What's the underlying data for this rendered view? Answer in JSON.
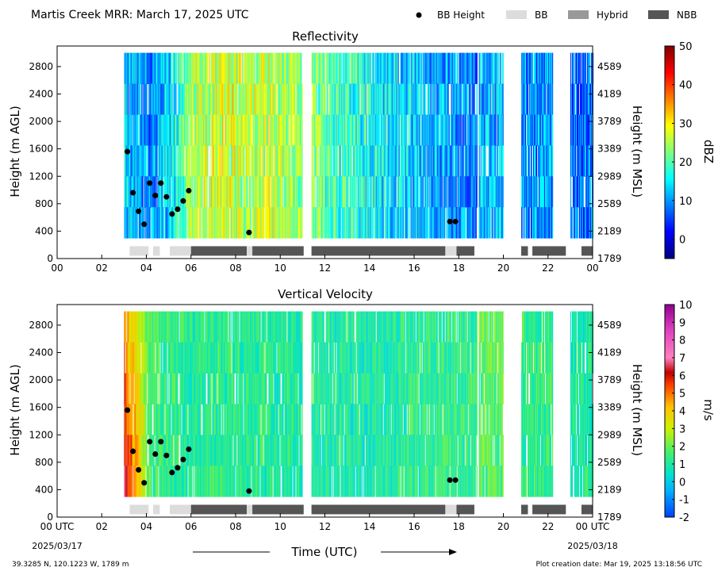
{
  "figure": {
    "title": "Martis Creek MRR:  March 17, 2025 UTC",
    "station_info": "39.3285 N, 120.1223 W, 1789 m",
    "creation_date": "Plot creation date: Mar 19, 2025 13:18:56 UTC",
    "xlabel": "Time (UTC)",
    "start_date": "2025/03/17",
    "end_date": "2025/03/18",
    "legend": [
      {
        "label": "BB Height",
        "kind": "marker",
        "color": "#000000"
      },
      {
        "label": "BB",
        "kind": "swatch",
        "color": "#dcdcdc"
      },
      {
        "label": "Hybrid",
        "kind": "swatch",
        "color": "#999999"
      },
      {
        "label": "NBB",
        "kind": "swatch",
        "color": "#555555"
      }
    ]
  },
  "chart_data": [
    {
      "type": "heatmap",
      "title": "Reflectivity",
      "ylabel": "Height (m AGL)",
      "ylabel_right": "Height (m MSL)",
      "colorbar_label": "dBZ",
      "colorbar_ticks": [
        "0",
        "10",
        "20",
        "30",
        "40",
        "50"
      ],
      "colorbar_range": [
        -5,
        50
      ],
      "colormap": "jet",
      "xlim": [
        0,
        24
      ],
      "ylim": [
        0,
        3100
      ],
      "x_ticks": [
        "00",
        "02",
        "04",
        "06",
        "08",
        "10",
        "12",
        "14",
        "16",
        "18",
        "20",
        "22",
        "00"
      ],
      "y_ticks": [
        0,
        400,
        800,
        1200,
        1600,
        2000,
        2400,
        2800
      ],
      "y_ticks_right": [
        "1789",
        "2189",
        "2589",
        "2989",
        "3389",
        "3789",
        "4189",
        "4589"
      ],
      "data_extent": [
        300,
        3000
      ],
      "segments": [
        {
          "start": 3.0,
          "end": 11.0,
          "base": 15,
          "profile": [
            [
              3.0,
              14
            ],
            [
              4.0,
              9
            ],
            [
              5.0,
              14
            ],
            [
              6.0,
              25
            ],
            [
              7.5,
              28
            ],
            [
              8.5,
              25
            ],
            [
              9.5,
              27
            ],
            [
              11.0,
              22
            ]
          ]
        },
        {
          "start": 11.4,
          "end": 18.8,
          "base": 12,
          "profile": [
            [
              11.4,
              22
            ],
            [
              13.0,
              18
            ],
            [
              15.0,
              14
            ],
            [
              17.0,
              11
            ],
            [
              18.8,
              8
            ]
          ]
        },
        {
          "start": 18.9,
          "end": 20.0,
          "base": 12,
          "profile": [
            [
              18.9,
              12
            ],
            [
              20.0,
              12
            ]
          ]
        },
        {
          "start": 20.8,
          "end": 22.2,
          "base": 10,
          "profile": [
            [
              20.8,
              10
            ],
            [
              22.2,
              10
            ]
          ]
        },
        {
          "start": 23.0,
          "end": 24.0,
          "base": 8,
          "profile": [
            [
              23.0,
              8
            ],
            [
              24.0,
              8
            ]
          ]
        }
      ],
      "bb_height_points": [
        [
          3.15,
          1560
        ],
        [
          3.4,
          960
        ],
        [
          3.65,
          690
        ],
        [
          3.9,
          500
        ],
        [
          4.15,
          1100
        ],
        [
          4.4,
          920
        ],
        [
          4.65,
          1100
        ],
        [
          4.9,
          900
        ],
        [
          5.15,
          650
        ],
        [
          5.4,
          720
        ],
        [
          5.65,
          840
        ],
        [
          5.9,
          990
        ],
        [
          8.6,
          380
        ],
        [
          17.6,
          540
        ],
        [
          17.85,
          540
        ]
      ],
      "bb_bar": [
        {
          "start": 3.25,
          "end": 4.1,
          "type": "BB"
        },
        {
          "start": 4.3,
          "end": 4.6,
          "type": "BB"
        },
        {
          "start": 5.05,
          "end": 6.0,
          "type": "BB"
        },
        {
          "start": 6.0,
          "end": 8.5,
          "type": "NBB"
        },
        {
          "start": 8.5,
          "end": 8.75,
          "type": "BB"
        },
        {
          "start": 8.75,
          "end": 11.05,
          "type": "NBB"
        },
        {
          "start": 11.4,
          "end": 17.4,
          "type": "NBB"
        },
        {
          "start": 17.4,
          "end": 17.9,
          "type": "BB"
        },
        {
          "start": 17.9,
          "end": 18.7,
          "type": "NBB"
        },
        {
          "start": 20.8,
          "end": 21.1,
          "type": "NBB"
        },
        {
          "start": 21.3,
          "end": 22.8,
          "type": "NBB"
        },
        {
          "start": 23.5,
          "end": 24.0,
          "type": "NBB"
        }
      ]
    },
    {
      "type": "heatmap",
      "title": "Vertical Velocity",
      "ylabel": "Height (m AGL)",
      "ylabel_right": "Height (m MSL)",
      "colorbar_label": "m/s",
      "colorbar_ticks": [
        "-2",
        "-1",
        "0",
        "1",
        "2",
        "3",
        "4",
        "5",
        "6",
        "7",
        "8",
        "9",
        "10"
      ],
      "colorbar_range": [
        -2,
        10
      ],
      "colormap": "velocity",
      "xlim": [
        0,
        24
      ],
      "ylim": [
        0,
        3100
      ],
      "x_ticks": [
        "00 UTC",
        "02",
        "04",
        "06",
        "08",
        "10",
        "12",
        "14",
        "16",
        "18",
        "20",
        "22",
        "00 UTC"
      ],
      "y_ticks": [
        0,
        400,
        800,
        1200,
        1600,
        2000,
        2400,
        2800
      ],
      "y_ticks_right": [
        "1789",
        "2189",
        "2589",
        "2989",
        "3389",
        "3789",
        "4189",
        "4589"
      ],
      "data_extent": [
        300,
        3000
      ],
      "segments": [
        {
          "start": 3.0,
          "end": 11.0,
          "base": 1.0,
          "profile": [
            [
              3.0,
              4.5
            ],
            [
              3.6,
              3.0
            ],
            [
              4.2,
              1.5
            ],
            [
              6.0,
              1.1
            ],
            [
              8.0,
              1.2
            ],
            [
              11.0,
              1.0
            ]
          ]
        },
        {
          "start": 11.4,
          "end": 18.8,
          "base": 1.0,
          "profile": [
            [
              11.4,
              1.0
            ],
            [
              14.0,
              0.9
            ],
            [
              16.0,
              1.2
            ],
            [
              18.8,
              1.3
            ]
          ]
        },
        {
          "start": 18.9,
          "end": 20.0,
          "base": 1.8,
          "profile": [
            [
              18.9,
              1.8
            ],
            [
              20.0,
              1.8
            ]
          ]
        },
        {
          "start": 20.8,
          "end": 22.2,
          "base": 1.3,
          "profile": [
            [
              20.8,
              1.3
            ],
            [
              22.2,
              1.3
            ]
          ]
        },
        {
          "start": 23.0,
          "end": 24.0,
          "base": 1.0,
          "profile": [
            [
              23.0,
              1.0
            ],
            [
              24.0,
              1.0
            ]
          ]
        }
      ],
      "bb_height_points": [
        [
          3.15,
          1560
        ],
        [
          3.4,
          960
        ],
        [
          3.65,
          690
        ],
        [
          3.9,
          500
        ],
        [
          4.15,
          1100
        ],
        [
          4.4,
          920
        ],
        [
          4.65,
          1100
        ],
        [
          4.9,
          900
        ],
        [
          5.15,
          650
        ],
        [
          5.4,
          720
        ],
        [
          5.65,
          840
        ],
        [
          5.9,
          990
        ],
        [
          8.6,
          380
        ],
        [
          17.6,
          540
        ],
        [
          17.85,
          540
        ]
      ],
      "bb_bar": [
        {
          "start": 3.25,
          "end": 4.1,
          "type": "BB"
        },
        {
          "start": 4.3,
          "end": 4.6,
          "type": "BB"
        },
        {
          "start": 5.05,
          "end": 6.0,
          "type": "BB"
        },
        {
          "start": 6.0,
          "end": 8.5,
          "type": "NBB"
        },
        {
          "start": 8.5,
          "end": 8.75,
          "type": "BB"
        },
        {
          "start": 8.75,
          "end": 11.05,
          "type": "NBB"
        },
        {
          "start": 11.4,
          "end": 17.4,
          "type": "NBB"
        },
        {
          "start": 17.4,
          "end": 17.9,
          "type": "BB"
        },
        {
          "start": 17.9,
          "end": 18.7,
          "type": "NBB"
        },
        {
          "start": 20.8,
          "end": 21.1,
          "type": "NBB"
        },
        {
          "start": 21.3,
          "end": 22.8,
          "type": "NBB"
        },
        {
          "start": 23.5,
          "end": 24.0,
          "type": "NBB"
        }
      ]
    }
  ]
}
